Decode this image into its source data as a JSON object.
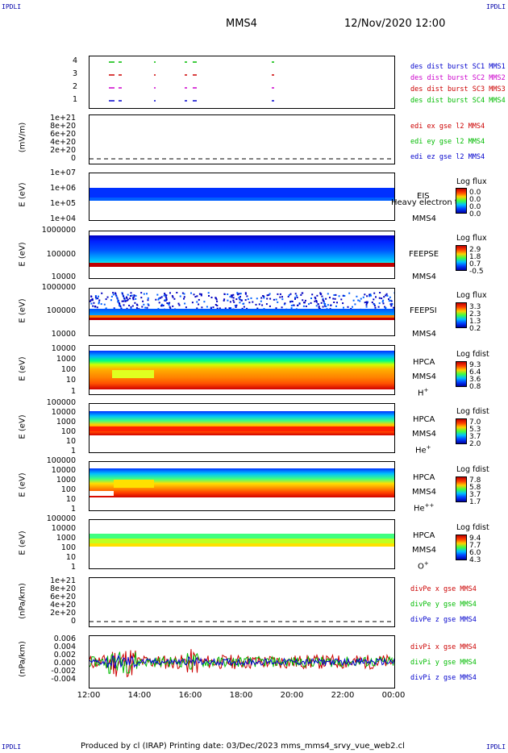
{
  "header": {
    "corner_left_top": "IPDLI",
    "corner_right_top": "IPDLI",
    "corner_left_bottom": "IPDLI",
    "corner_right_bottom": "IPDLI",
    "spacecraft": "MMS4",
    "datetime": "12/Nov/2020 12:00"
  },
  "footer": {
    "text": "Produced by cl (IRAP)   Printing date: 03/Dec/2023   mms_mms4_srvy_vue_web2.cl"
  },
  "colors": {
    "sc1": "#0000cc",
    "sc2": "#cc00cc",
    "sc3": "#cc0000",
    "sc4": "#00bb00"
  },
  "x_ticks": [
    "12:00",
    "14:00",
    "16:00",
    "18:00",
    "20:00",
    "22:00",
    "00:00"
  ],
  "panels": {
    "burst": {
      "ticks": [
        "4",
        "3",
        "2",
        "1"
      ],
      "legend": [
        "des dist burst SC1 MMS1",
        "des dist burst SC2 MMS2",
        "des dist burst SC3 MMS3",
        "des dist burst SC4 MMS4"
      ]
    },
    "edi": {
      "ylabel": "(mV/m)",
      "ticks": [
        "1e+21",
        "8e+20",
        "6e+20",
        "4e+20",
        "2e+20",
        "0"
      ],
      "legend": [
        "edi ex gse l2 MMS4",
        "edi ey gse l2 MMS4",
        "edi ez gse l2 MMS4"
      ]
    },
    "eis": {
      "ylabel": "E (eV)",
      "ticks": [
        "1e+07",
        "1e+06",
        "1e+05",
        "1e+04"
      ],
      "instrument": "EIS",
      "sc": "MMS4",
      "overlay": "Heavy electron ta",
      "cb_title": "Log flux",
      "cb_values": [
        "0.0",
        "0.0",
        "0.0",
        "0.0"
      ]
    },
    "feepse": {
      "ylabel": "E (eV)",
      "ticks": [
        "1000000",
        "100000",
        "10000"
      ],
      "instrument": "FEEPSE",
      "sc": "MMS4",
      "cb_title": "Log flux",
      "cb_values": [
        "2.9",
        "1.8",
        "0.7",
        "-0.5"
      ]
    },
    "feepsi": {
      "ylabel": "E (eV)",
      "ticks": [
        "1000000",
        "100000",
        "10000"
      ],
      "instrument": "FEEPSI",
      "sc": "MMS4",
      "cb_title": "Log flux",
      "cb_values": [
        "3.3",
        "2.3",
        "1.3",
        "0.2"
      ]
    },
    "hpca_h": {
      "ylabel": "E (eV)",
      "ticks": [
        "10000",
        "1000",
        "100",
        "10",
        "1"
      ],
      "instrument": "HPCA",
      "sc": "MMS4",
      "species": "H",
      "species_sup": "+",
      "cb_title": "Log fdist",
      "cb_values": [
        "9.3",
        "6.4",
        "3.6",
        "0.8"
      ]
    },
    "hpca_he": {
      "ylabel": "E (eV)",
      "ticks": [
        "100000",
        "10000",
        "1000",
        "100",
        "10",
        "1"
      ],
      "instrument": "HPCA",
      "sc": "MMS4",
      "species": "He",
      "species_sup": "+",
      "cb_title": "Log fdist",
      "cb_values": [
        "7.0",
        "5.3",
        "3.7",
        "2.0"
      ]
    },
    "hpca_hepp": {
      "ylabel": "E (eV)",
      "ticks": [
        "100000",
        "10000",
        "1000",
        "100",
        "10",
        "1"
      ],
      "instrument": "HPCA",
      "sc": "MMS4",
      "species": "He",
      "species_sup": "++",
      "cb_title": "Log fdist",
      "cb_values": [
        "7.8",
        "5.8",
        "3.7",
        "1.7"
      ]
    },
    "hpca_o": {
      "ylabel": "E (eV)",
      "ticks": [
        "100000",
        "10000",
        "1000",
        "100",
        "10",
        "1"
      ],
      "instrument": "HPCA",
      "sc": "MMS4",
      "species": "O",
      "species_sup": "+",
      "cb_title": "Log fdist",
      "cb_values": [
        "9.4",
        "7.7",
        "6.0",
        "4.3"
      ]
    },
    "divpe": {
      "ylabel": "(nPa/km)",
      "ticks": [
        "1e+21",
        "8e+20",
        "6e+20",
        "4e+20",
        "2e+20",
        "0"
      ],
      "legend": [
        "divPe x gse MMS4",
        "divPe y gse MMS4",
        "divPe z gse MMS4"
      ]
    },
    "divpi": {
      "ylabel": "(nPa/km)",
      "ticks": [
        "0.006",
        "0.004",
        "0.002",
        "0.000",
        "-0.002",
        "-0.004"
      ],
      "legend": [
        "divPi x gse MMS4",
        "divPi y gse MMS4",
        "divPi z gse MMS4"
      ]
    }
  },
  "chart_data": {
    "type": "line",
    "title": "MMS4 12/Nov/2020 12:00",
    "xlabel": "",
    "x_range": [
      "12:00",
      "00:00"
    ],
    "series": [
      {
        "name": "divPi x gse MMS4",
        "approx_range": [
          -0.004,
          0.006
        ]
      },
      {
        "name": "divPi y gse MMS4",
        "approx_range": [
          -0.003,
          0.005
        ]
      },
      {
        "name": "divPi z gse MMS4",
        "approx_range": [
          -0.002,
          0.002
        ]
      }
    ]
  }
}
